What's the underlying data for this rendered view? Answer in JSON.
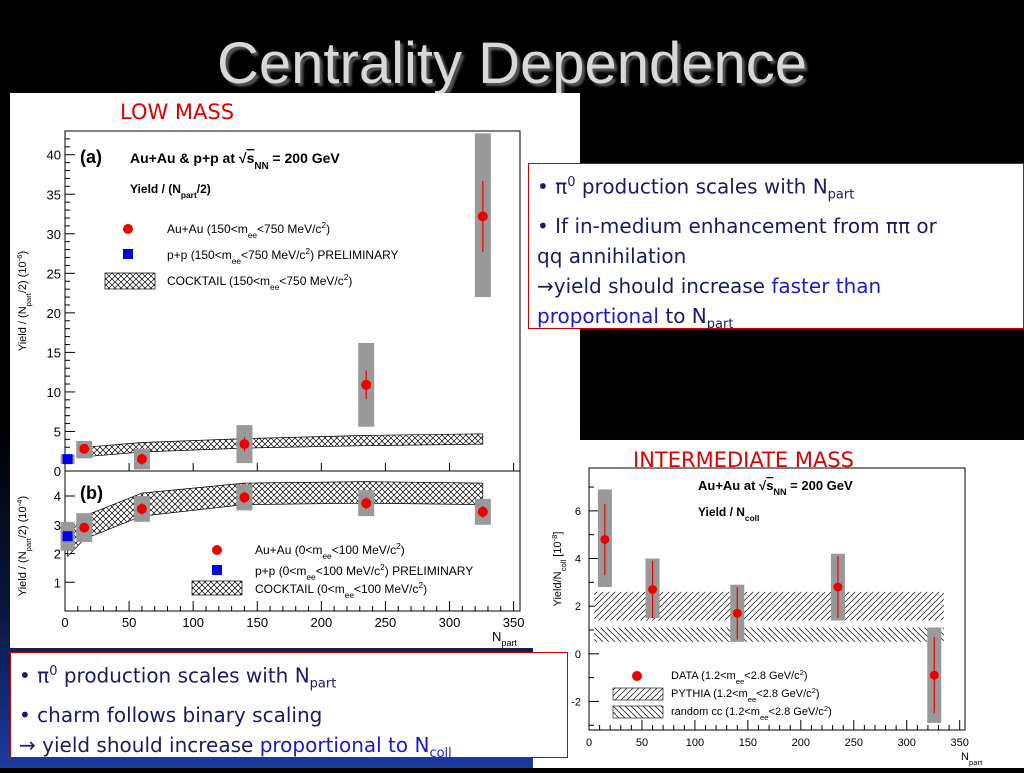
{
  "slide": {
    "title": "Centrality Dependence",
    "low_mass_label": "LOW MASS",
    "intermediate_mass_label": "INTERMEDIATE MASS"
  },
  "textbox_top": {
    "line1_prefix": "• ",
    "line1_pi": "π",
    "line1_sup": "0",
    "line1_text": " production scales with N",
    "line1_sub": "part",
    "line2_text": "• If in-medium enhancement from ",
    "line2_pipi": "ππ",
    "line2_or": " or",
    "line3_text": "qq  annihilation",
    "line4_arrow": "→",
    "line4_text": "yield should increase ",
    "line4_blue": "faster than",
    "line5_blue": "proportional",
    "line5_text": " to N",
    "line5_sub": "part"
  },
  "textbox_bottom": {
    "line1_prefix": "• ",
    "line1_pi": "π",
    "line1_sup": "0",
    "line1_text": " production scales with N",
    "line1_sub": "part",
    "line2_text": "• charm follows binary scaling",
    "line3_arrow": "→",
    "line3_text": " yield should increase ",
    "line3_blue": "proportional to N",
    "line3_sub": "coll"
  },
  "colors": {
    "data_red": "#ee0000",
    "pp_blue": "#0000ee",
    "syst_gray": "#999999",
    "label_red": "#e00000",
    "text_navy": "#1a1a66",
    "text_blue": "#1a1acc"
  },
  "chart_data": [
    {
      "id": "a",
      "type": "scatter",
      "panel_label": "(a)",
      "title_prefix": "Au+Au & p+p at ",
      "title_sqrt": "s",
      "title_sub": "NN",
      "title_suffix": " = 200 GeV",
      "subtitle": "Yield / (N",
      "subtitle_sub": "part",
      "subtitle_end": "/2)",
      "ylabel": "Yield / (N",
      "ylabel_sub": "part",
      "ylabel_end": "/2) (10",
      "ylabel_sup": "-6",
      "ylabel_close": ")",
      "xlim": [
        0,
        355
      ],
      "ylim": [
        0,
        43
      ],
      "yticks": [
        "0",
        "5",
        "10",
        "15",
        "20",
        "25",
        "30",
        "35",
        "40"
      ],
      "legend": [
        {
          "text": "Au+Au (150<m",
          "sub": "ee",
          "text2": "<750 MeV/c",
          "sup": "2",
          "text3": ")"
        },
        {
          "text": "p+p (150<m",
          "sub": "ee",
          "text2": "<750 MeV/c",
          "sup": "2",
          "text3": ") PRELIMINARY"
        },
        {
          "text": "COCKTAIL (150<m",
          "sub": "ee",
          "text2": "<750 MeV/c",
          "sup": "2",
          "text3": ")"
        }
      ],
      "auau": [
        {
          "x": 15,
          "y": 2.8,
          "err": 0.5,
          "syst_lo": 1.6,
          "syst_hi": 3.8
        },
        {
          "x": 60,
          "y": 1.5,
          "err": 0.7,
          "syst_lo": 0.2,
          "syst_hi": 2.8
        },
        {
          "x": 140,
          "y": 3.4,
          "err": 0.9,
          "syst_lo": 1.0,
          "syst_hi": 5.8
        },
        {
          "x": 235,
          "y": 10.9,
          "err": 1.8,
          "syst_lo": 5.6,
          "syst_hi": 16.2
        },
        {
          "x": 326,
          "y": 32.2,
          "err": 4.5,
          "syst_lo": 22.0,
          "syst_hi": 42.7
        }
      ],
      "pp": {
        "x": 2,
        "y": 1.5,
        "syst_lo": 0.9,
        "syst_hi": 2.1
      },
      "cocktail_x": [
        15,
        60,
        140,
        235,
        326
      ],
      "cocktail_lo": [
        1.8,
        2.4,
        2.9,
        3.2,
        3.4
      ],
      "cocktail_hi": [
        3.0,
        3.6,
        4.1,
        4.5,
        4.7
      ]
    },
    {
      "id": "b",
      "type": "scatter",
      "panel_label": "(b)",
      "ylabel": "Yield / (N",
      "ylabel_sub": "part",
      "ylabel_end": "/2) (10",
      "ylabel_sup": "-4",
      "ylabel_close": ")",
      "xlabel": "N",
      "xlabel_sub": "part",
      "xlim": [
        0,
        355
      ],
      "ylim": [
        0,
        4.8
      ],
      "yticks": [
        "1",
        "2",
        "3",
        "4"
      ],
      "xticks": [
        "0",
        "50",
        "100",
        "150",
        "200",
        "250",
        "300",
        "350"
      ],
      "legend": [
        {
          "text": "Au+Au (0<m",
          "sub": "ee",
          "text2": "<100 MeV/c",
          "sup": "2",
          "text3": ")"
        },
        {
          "text": "p+p (0<m",
          "sub": "ee",
          "text2": "<100 MeV/c",
          "sup": "2",
          "text3": ") PRELIMINARY"
        },
        {
          "text": "COCKTAIL (0<m",
          "sub": "ee",
          "text2": "<100 MeV/c",
          "sup": "2",
          "text3": ")"
        }
      ],
      "auau": [
        {
          "x": 15,
          "y": 2.9,
          "err": 0.15,
          "syst_lo": 2.4,
          "syst_hi": 3.4
        },
        {
          "x": 60,
          "y": 3.55,
          "err": 0.2,
          "syst_lo": 3.1,
          "syst_hi": 4.0
        },
        {
          "x": 140,
          "y": 3.95,
          "err": 0.2,
          "syst_lo": 3.5,
          "syst_hi": 4.4
        },
        {
          "x": 235,
          "y": 3.75,
          "err": 0.2,
          "syst_lo": 3.3,
          "syst_hi": 4.2
        },
        {
          "x": 326,
          "y": 3.45,
          "err": 0.2,
          "syst_lo": 3.0,
          "syst_hi": 3.9
        }
      ],
      "pp": {
        "x": 2,
        "y": 2.6,
        "syst_lo": 2.1,
        "syst_hi": 3.1
      },
      "cocktail_x": [
        2,
        15,
        60,
        140,
        235,
        326
      ],
      "cocktail_lo": [
        1.9,
        2.5,
        3.3,
        3.7,
        3.75,
        3.7
      ],
      "cocktail_hi": [
        2.6,
        3.3,
        4.1,
        4.45,
        4.5,
        4.45
      ]
    },
    {
      "id": "c",
      "type": "scatter",
      "title_prefix": "Au+Au at ",
      "title_sqrt": "s",
      "title_sub": "NN",
      "title_suffix": " = 200 GeV",
      "subtitle": "Yield / N",
      "subtitle_sub": "coll",
      "ylabel": "Yield/N",
      "ylabel_sub": "coll",
      "ylabel_end": " [10",
      "ylabel_sup": "-8",
      "ylabel_close": "]",
      "xlabel": "N",
      "xlabel_sub": "part",
      "xlim": [
        0,
        355
      ],
      "ylim": [
        -3.2,
        7.8
      ],
      "yticks": [
        "-2",
        "0",
        "2",
        "4",
        "6"
      ],
      "xticks": [
        "0",
        "50",
        "100",
        "150",
        "200",
        "250",
        "300",
        "350"
      ],
      "legend": [
        {
          "text": "DATA (1.2<m",
          "sub": "ee",
          "text2": "<2.8 GeV/c",
          "sup": "2",
          "text3": ")"
        },
        {
          "text": "PYTHIA (1.2<m",
          "sub": "ee",
          "text2": "<2.8 GeV/c",
          "sup": "2",
          "text3": ")"
        },
        {
          "text": "random cc (1.2<m",
          "sub": "ee",
          "text2": "<2.8 GeV/c",
          "sup": "2",
          "text3": ")"
        }
      ],
      "data": [
        {
          "x": 15,
          "y": 4.8,
          "err": 1.5,
          "syst_lo": 2.8,
          "syst_hi": 6.9
        },
        {
          "x": 60,
          "y": 2.7,
          "err": 1.2,
          "syst_lo": 1.5,
          "syst_hi": 4.0
        },
        {
          "x": 140,
          "y": 1.7,
          "err": 1.1,
          "syst_lo": 0.5,
          "syst_hi": 2.9
        },
        {
          "x": 235,
          "y": 2.8,
          "err": 1.3,
          "syst_lo": 1.4,
          "syst_hi": 4.2
        },
        {
          "x": 326,
          "y": -0.9,
          "err": 1.6,
          "syst_lo": -2.9,
          "syst_hi": 1.1
        }
      ],
      "pythia_band": [
        1.4,
        2.6
      ],
      "random_cc_band": [
        0.5,
        1.1
      ]
    }
  ]
}
